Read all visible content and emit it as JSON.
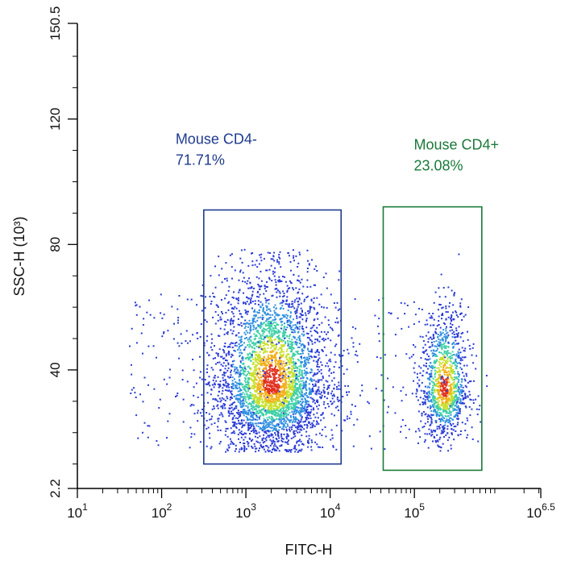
{
  "chart_data": {
    "type": "scatter",
    "style": "density",
    "xlabel": "FITC-H",
    "ylabel": "SSC-H (10³)",
    "x_scale": "log10",
    "xlim": [
      1,
      6.5
    ],
    "ylim": [
      2.2,
      150.5
    ],
    "x_ticks": [
      {
        "value": 1,
        "base": "10",
        "exp": "1"
      },
      {
        "value": 2,
        "base": "10",
        "exp": "2"
      },
      {
        "value": 3,
        "base": "10",
        "exp": "3"
      },
      {
        "value": 4,
        "base": "10",
        "exp": "4"
      },
      {
        "value": 5,
        "base": "10",
        "exp": "5"
      },
      {
        "value": 6.5,
        "base": "10",
        "exp": "6.5"
      }
    ],
    "y_ticks": [
      {
        "value": 2.2,
        "label": "2.2"
      },
      {
        "value": 40,
        "label": "40"
      },
      {
        "value": 80,
        "label": "80"
      },
      {
        "value": 120,
        "label": "120"
      },
      {
        "value": 150.5,
        "label": "150.5"
      }
    ],
    "clusters": [
      {
        "x_log": 3.3,
        "y": 36,
        "sx_log": 0.32,
        "sy": 12,
        "weight": 0.72
      },
      {
        "x_log": 5.35,
        "y": 34,
        "sx_log": 0.14,
        "sy": 9,
        "weight": 0.23
      }
    ],
    "density_colors": [
      "#2a3bd6",
      "#2f8fe0",
      "#3fd0a8",
      "#c8e02a",
      "#f2b01c",
      "#e0301e"
    ],
    "gates": [
      {
        "name": "Mouse CD4-",
        "percent": "71.71%",
        "color": "#1f3b8f",
        "x_log": [
          2.5,
          4.13
        ],
        "y": [
          10,
          91
        ]
      },
      {
        "name": "Mouse CD4+",
        "percent": "23.08%",
        "color": "#1a7a3a",
        "x_log": [
          4.63,
          5.8
        ],
        "y": [
          8,
          92
        ]
      }
    ],
    "grid": false,
    "legend": "none"
  }
}
